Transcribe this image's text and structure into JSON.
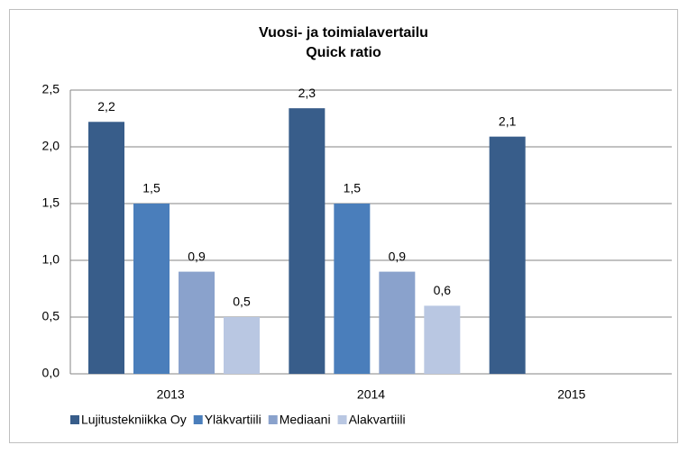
{
  "chart_data": {
    "type": "bar",
    "title": "Vuosi- ja toimialavertailu",
    "subtitle": "Quick ratio",
    "categories": [
      "2013",
      "2014",
      "2015"
    ],
    "series": [
      {
        "name": "Lujitustekniikka Oy",
        "color": "#385d8a",
        "values": [
          2.22,
          2.34,
          2.09
        ],
        "value_labels": [
          "2,2",
          "2,3",
          "2,1"
        ]
      },
      {
        "name": "Yläkvartiili",
        "color": "#4a7ebb",
        "values": [
          1.5,
          1.5,
          null
        ],
        "value_labels": [
          "1,5",
          "1,5",
          null
        ]
      },
      {
        "name": "Mediaani",
        "color": "#8aa2cc",
        "values": [
          0.9,
          0.9,
          null
        ],
        "value_labels": [
          "0,9",
          "0,9",
          null
        ]
      },
      {
        "name": "Alakvartiili",
        "color": "#b9c7e2",
        "values": [
          0.5,
          0.6,
          null
        ],
        "value_labels": [
          "0,5",
          "0,6",
          null
        ]
      }
    ],
    "ylim": [
      0,
      2.5
    ],
    "yticks": [
      {
        "value": 0,
        "label": "0,0"
      },
      {
        "value": 0.5,
        "label": "0,5"
      },
      {
        "value": 1,
        "label": "1,0"
      },
      {
        "value": 1.5,
        "label": "1,5"
      },
      {
        "value": 2,
        "label": "2,0"
      },
      {
        "value": 2.5,
        "label": "2,5"
      }
    ],
    "grid": true,
    "legend": "bottom"
  }
}
